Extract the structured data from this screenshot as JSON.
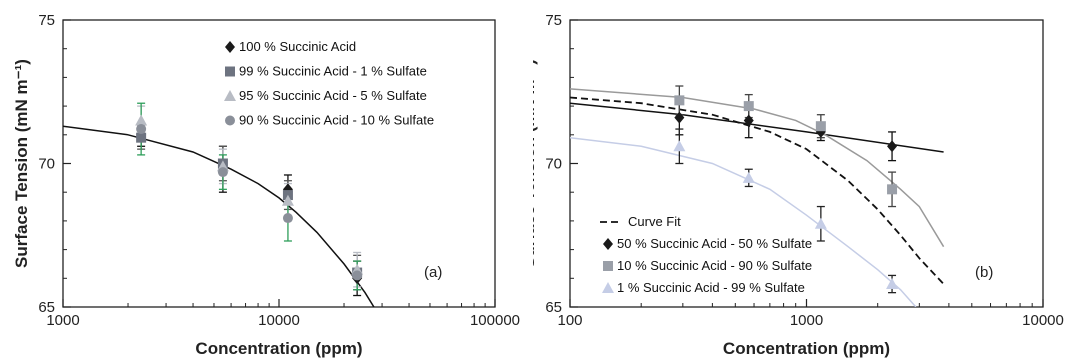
{
  "chart_data": [
    {
      "type": "scatter",
      "panel_label": "(a)",
      "xlabel": "Concentration (ppm)",
      "ylabel": "Surface Tension (mN m⁻¹)",
      "xscale": "log",
      "xlim": [
        1000,
        100000
      ],
      "ylim": [
        65,
        75
      ],
      "xticks": [
        1000,
        10000,
        100000
      ],
      "xtick_labels": [
        "1000",
        "10000",
        "100000"
      ],
      "yticks": [
        65,
        70,
        75
      ],
      "ytick_labels": [
        "65",
        "70",
        "75"
      ],
      "legend_position": "top-right",
      "series": [
        {
          "name": "100 % Succinic Acid",
          "marker": "diamond",
          "color": "#1a1a1a",
          "err_color": "#111111",
          "points": [
            [
              2300,
              71.0,
              0.4
            ],
            [
              5500,
              69.8,
              0.8
            ],
            [
              11000,
              69.1,
              0.5
            ],
            [
              23000,
              66.0,
              0.6
            ]
          ]
        },
        {
          "name": "99 % Succinic Acid - 1 % Sulfate",
          "marker": "square",
          "color": "#6d7380",
          "err_color": "#555555",
          "points": [
            [
              2300,
              70.9,
              0.4
            ],
            [
              5500,
              70.0,
              0.6
            ],
            [
              11000,
              68.9,
              0.5
            ],
            [
              23000,
              66.2,
              0.6
            ]
          ]
        },
        {
          "name": "95 % Succinic Acid - 5 % Sulfate",
          "marker": "triangle",
          "color": "#b8bcc4",
          "err_color": "#b8bcc4",
          "points": [
            [
              2300,
              71.5,
              0.5
            ],
            [
              5500,
              69.9,
              0.6
            ],
            [
              11000,
              68.7,
              0.6
            ],
            [
              23000,
              66.3,
              0.6
            ]
          ]
        },
        {
          "name": "90 % Succinic Acid - 10 % Sulfate",
          "marker": "circle",
          "color": "#8a8f99",
          "err_color": "#2e9e5a",
          "points": [
            [
              2300,
              71.2,
              0.9
            ],
            [
              5500,
              69.7,
              0.6
            ],
            [
              11000,
              68.1,
              0.8
            ],
            [
              23000,
              66.1,
              0.5
            ]
          ]
        }
      ],
      "curve": {
        "name": "",
        "color": "#111111",
        "style": "solid",
        "x": [
          1000,
          2000,
          4000,
          6000,
          8000,
          10000,
          12000,
          15000,
          20000,
          25000,
          27500
        ],
        "y": [
          71.3,
          71.0,
          70.4,
          69.8,
          69.3,
          68.8,
          68.3,
          67.6,
          66.5,
          65.5,
          65.0
        ]
      }
    },
    {
      "type": "scatter",
      "panel_label": "(b)",
      "xlabel": "Concentration (ppm)",
      "ylabel": "Surface Tension (mN m⁻¹)",
      "xscale": "log",
      "xlim": [
        100,
        10000
      ],
      "ylim": [
        65,
        75
      ],
      "xticks": [
        100,
        1000,
        10000
      ],
      "xtick_labels": [
        "100",
        "1000",
        "10000"
      ],
      "yticks": [
        65,
        70,
        75
      ],
      "ytick_labels": [
        "65",
        "70",
        "75"
      ],
      "legend_position": "bottom-left",
      "legend_curve_label": "Curve Fit",
      "series": [
        {
          "name": "50 % Succinic Acid - 50 % Sulfate",
          "marker": "diamond",
          "color": "#1a1a1a",
          "err_color": "#111111",
          "points": [
            [
              290,
              71.6,
              0.6
            ],
            [
              570,
              71.5,
              0.6
            ],
            [
              1150,
              71.1,
              0.3
            ],
            [
              2300,
              70.6,
              0.5
            ]
          ]
        },
        {
          "name": "10 % Succinic Acid - 90 % Sulfate",
          "marker": "square",
          "color": "#9a9fa8",
          "err_color": "#444444",
          "points": [
            [
              290,
              72.2,
              0.5
            ],
            [
              570,
              72.0,
              0.4
            ],
            [
              1150,
              71.3,
              0.4
            ],
            [
              2300,
              69.1,
              0.6
            ]
          ]
        },
        {
          "name": "1 % Succinic Acid - 99 % Sulfate",
          "marker": "triangle",
          "color": "#c5cde6",
          "err_color": "#222222",
          "points": [
            [
              290,
              70.6,
              0.6
            ],
            [
              570,
              69.5,
              0.3
            ],
            [
              1150,
              67.9,
              0.6
            ],
            [
              2300,
              65.8,
              0.3
            ]
          ]
        }
      ],
      "curves": [
        {
          "name": "Curve Fit",
          "color": "#111111",
          "style": "dashed",
          "x": [
            100,
            200,
            400,
            700,
            1000,
            1500,
            2000,
            2500,
            3000,
            3800
          ],
          "y": [
            72.3,
            72.1,
            71.7,
            71.1,
            70.5,
            69.4,
            68.4,
            67.5,
            66.7,
            65.8
          ]
        },
        {
          "name": "",
          "color": "#111111",
          "style": "solid",
          "x": [
            100,
            300,
            1000,
            3800
          ],
          "y": [
            72.1,
            71.7,
            71.1,
            70.4
          ]
        },
        {
          "name": "",
          "color": "#9a9a9a",
          "style": "solid",
          "x": [
            100,
            300,
            600,
            900,
            1200,
            1800,
            2500,
            3000,
            3800
          ],
          "y": [
            72.6,
            72.3,
            71.9,
            71.5,
            71.0,
            70.1,
            69.1,
            68.5,
            67.1
          ]
        },
        {
          "name": "",
          "color": "#c5cde6",
          "style": "solid",
          "x": [
            100,
            200,
            400,
            700,
            1000,
            1500,
            2000,
            2500,
            2900
          ],
          "y": [
            70.9,
            70.6,
            70.0,
            69.1,
            68.2,
            67.1,
            66.3,
            65.6,
            65.0
          ]
        }
      ]
    }
  ]
}
